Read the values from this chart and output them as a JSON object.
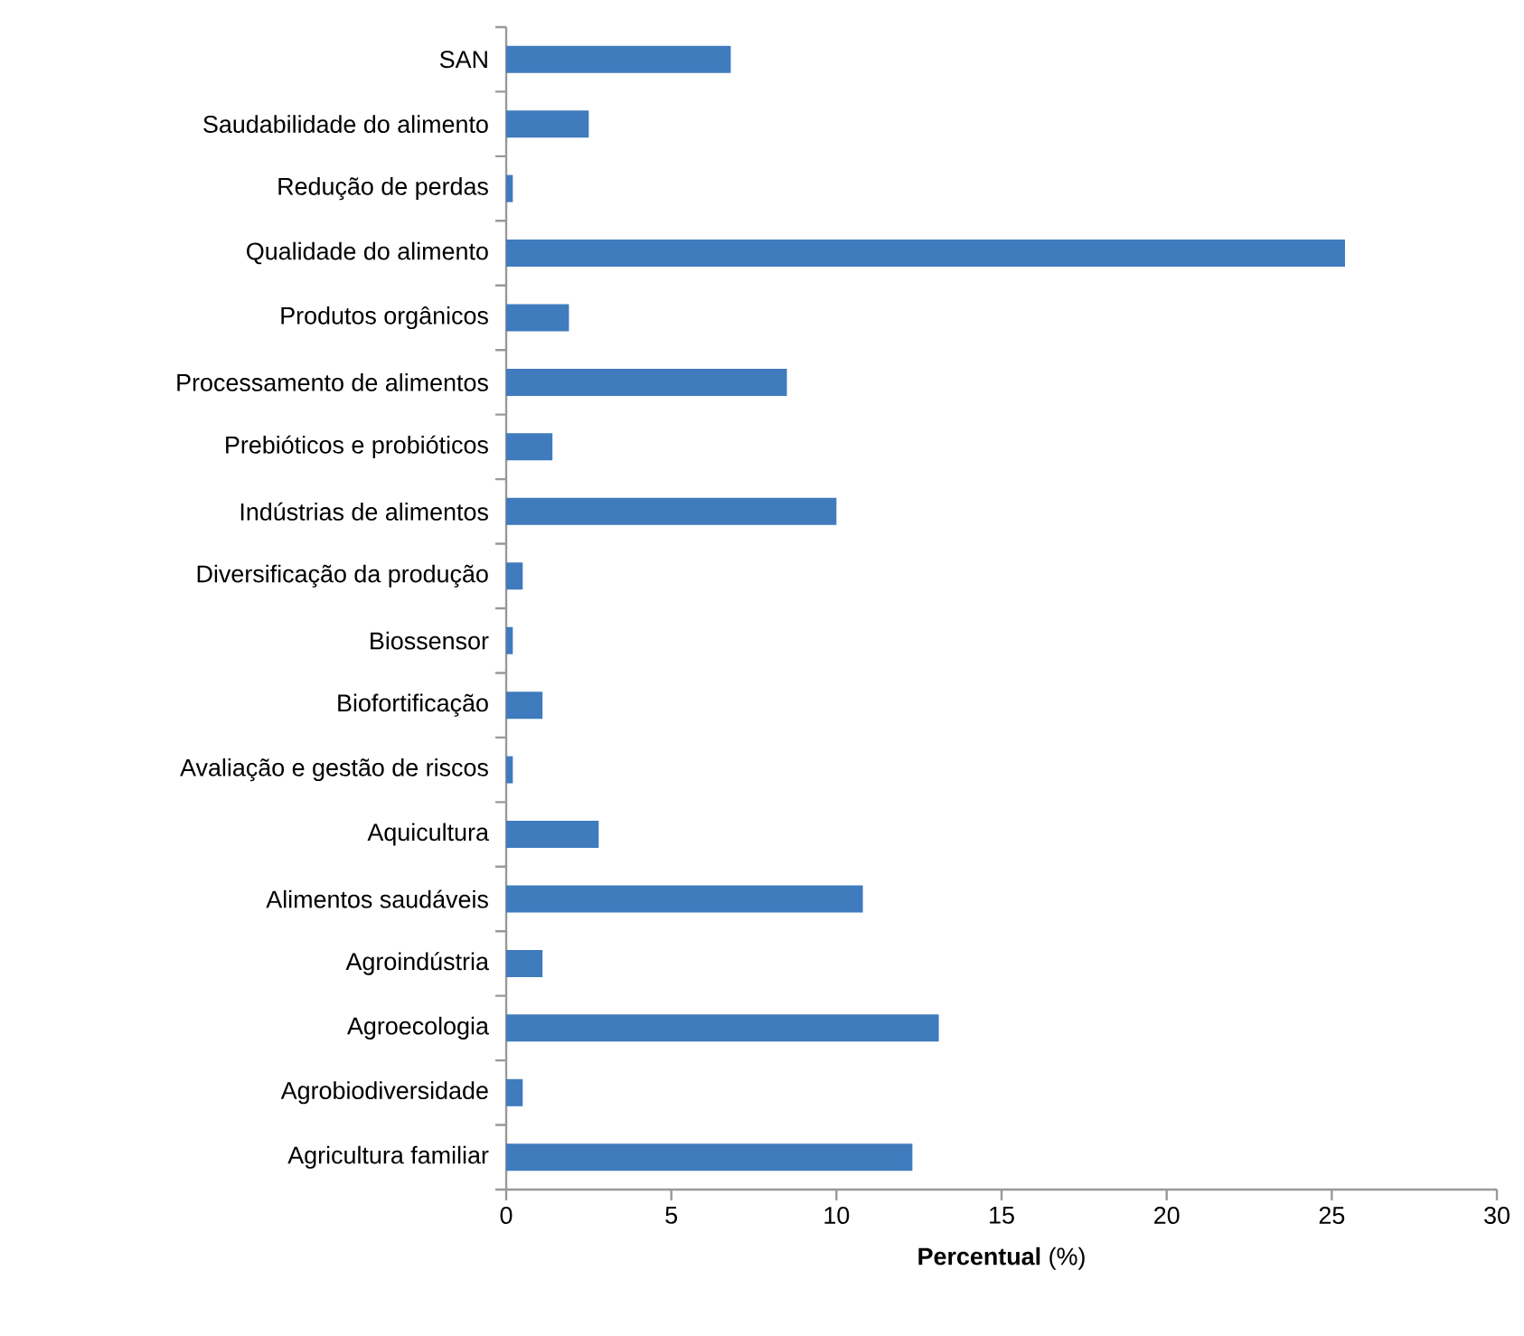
{
  "chart_data": {
    "type": "bar",
    "orientation": "horizontal",
    "xlabel": "**Percentual** (%)",
    "categories": [
      "SAN",
      "Saudabilidade do alimento",
      "Redução de perdas",
      "Qualidade do alimento",
      "Produtos orgânicos",
      "Processamento de alimentos",
      "Prebióticos e probióticos",
      "Indústrias de alimentos",
      "Diversificação da produção",
      "Biossensor",
      "Biofortificação",
      "Avaliação e gestão de riscos",
      "Aquicultura",
      "Alimentos saudáveis",
      "Agroindústria",
      "Agroecologia",
      "Agrobiodiversidade",
      "Agricultura familiar"
    ],
    "values": [
      6.8,
      2.5,
      0.2,
      25.4,
      1.9,
      8.5,
      1.4,
      10.0,
      0.5,
      0.2,
      1.1,
      0.2,
      2.8,
      10.8,
      1.1,
      13.1,
      0.5,
      12.3
    ],
    "color": "#3f7bbd",
    "xlim": [
      0,
      30
    ],
    "xticks": [
      0,
      5,
      10,
      15,
      20,
      25,
      30
    ],
    "grid": false
  }
}
